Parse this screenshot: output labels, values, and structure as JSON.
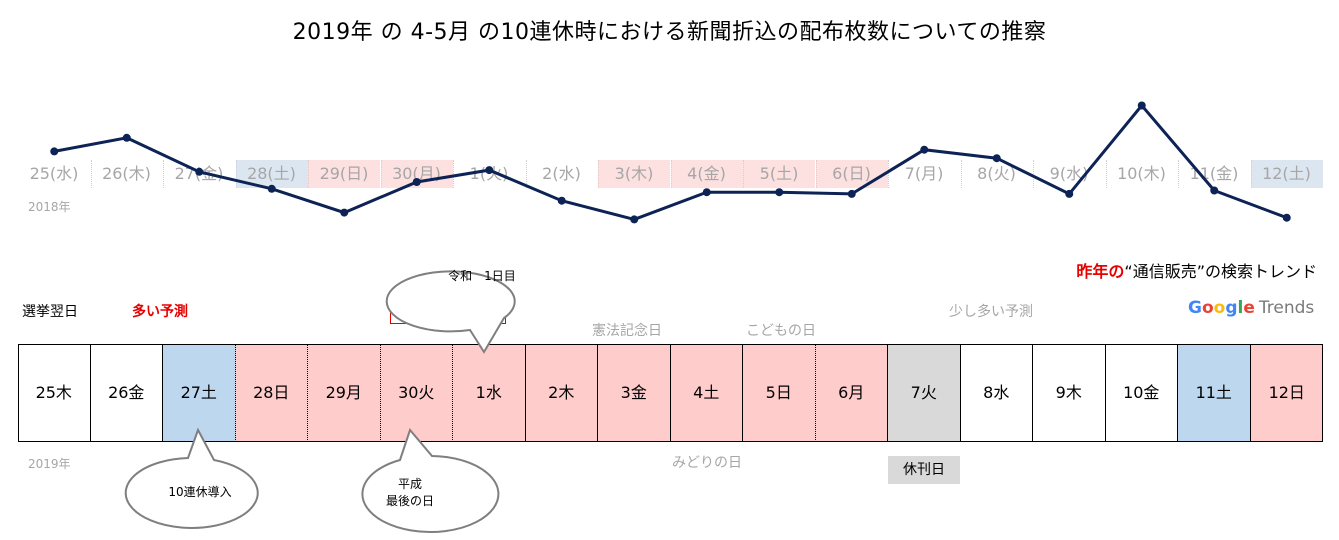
{
  "title": "2019年 の 4-5月 の10連休時における新聞折込の配布枚数についての推察",
  "chart_data": {
    "type": "line",
    "x": [
      "25(水)",
      "26(木)",
      "27(金)",
      "28(土)",
      "29(日)",
      "30(月)",
      "1(火)",
      "2(水)",
      "3(木)",
      "4(金)",
      "5(土)",
      "6(日)",
      "7(月)",
      "8(火)",
      "9(水)",
      "10(木)",
      "11(金)",
      "12(土)"
    ],
    "year_label": "2018年",
    "x_highlight": [
      "none",
      "none",
      "none",
      "blue",
      "pink",
      "pink",
      "none",
      "none",
      "pink",
      "pink",
      "pink",
      "pink",
      "none",
      "none",
      "none",
      "none",
      "none",
      "blue"
    ],
    "series": [
      {
        "name": "昨年の“通信販売”の検索トレンド",
        "values": [
          58,
          66,
          46,
          36,
          22,
          40,
          47,
          29,
          18,
          34,
          34,
          33,
          59,
          54,
          33,
          85,
          35,
          19
        ]
      }
    ],
    "line_color": "#0d2255"
  },
  "legend": {
    "prefix": "昨年の",
    "rest": "“通信販売”の検索トレンド"
  },
  "google_trends": {
    "letters": [
      "G",
      "o",
      "o",
      "g",
      "l",
      "e"
    ],
    "colors": [
      "#4285F4",
      "#EA4335",
      "#FBBC05",
      "#4285F4",
      "#34A853",
      "#EA4335"
    ],
    "suffix": "Trends"
  },
  "labels": {
    "senkyo": "選挙翌日",
    "ooi": "多い予測",
    "sukoshi_box": "少し多い予測",
    "reiwa": "令和　1日目",
    "kenpo": "憲法記念日",
    "kodomo": "こどもの日",
    "sukoshi_right": "少し多い予測",
    "midori": "みどりの日",
    "year2019": "2019年",
    "kyukan": "休刊日",
    "renkyu": "10連休導入",
    "heisei1": "平成",
    "heisei2": "最後の日"
  },
  "calendar": [
    {
      "label": "25木",
      "bg": "#ffffff"
    },
    {
      "label": "26金",
      "bg": "#ffffff"
    },
    {
      "label": "27土",
      "bg": "#bdd7ee"
    },
    {
      "label": "28日",
      "bg": "#ffcccc"
    },
    {
      "label": "29月",
      "bg": "#ffcccc"
    },
    {
      "label": "30火",
      "bg": "#ffcccc"
    },
    {
      "label": "1水",
      "bg": "#ffcccc"
    },
    {
      "label": "2木",
      "bg": "#ffcccc"
    },
    {
      "label": "3金",
      "bg": "#ffcccc"
    },
    {
      "label": "4土",
      "bg": "#ffcccc"
    },
    {
      "label": "5日",
      "bg": "#ffcccc"
    },
    {
      "label": "6月",
      "bg": "#ffcccc"
    },
    {
      "label": "7火",
      "bg": "#d9d9d9"
    },
    {
      "label": "8水",
      "bg": "#ffffff"
    },
    {
      "label": "9木",
      "bg": "#ffffff"
    },
    {
      "label": "10金",
      "bg": "#ffffff"
    },
    {
      "label": "11土",
      "bg": "#bdd7ee"
    },
    {
      "label": "12日",
      "bg": "#ffcccc"
    }
  ]
}
